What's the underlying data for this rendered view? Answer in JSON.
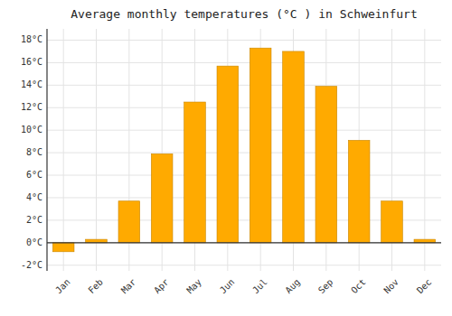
{
  "chart_data": {
    "type": "bar",
    "title": "Average monthly temperatures (°C ) in Schweinfurt",
    "categories": [
      "Jan",
      "Feb",
      "Mar",
      "Apr",
      "May",
      "Jun",
      "Jul",
      "Aug",
      "Sep",
      "Oct",
      "Nov",
      "Dec"
    ],
    "values": [
      -0.8,
      0.3,
      3.7,
      7.9,
      12.5,
      15.7,
      17.3,
      17.0,
      13.9,
      9.1,
      3.7,
      0.3
    ],
    "color": "#FFAA00",
    "ylim": [
      -2.5,
      19
    ],
    "yticks": [
      {
        "value": -2,
        "label": "-2°C"
      },
      {
        "value": 0,
        "label": "0°C"
      },
      {
        "value": 2,
        "label": "2°C"
      },
      {
        "value": 4,
        "label": "4°C"
      },
      {
        "value": 6,
        "label": "6°C"
      },
      {
        "value": 8,
        "label": "8°C"
      },
      {
        "value": 10,
        "label": "10°C"
      },
      {
        "value": 12,
        "label": "12°C"
      },
      {
        "value": 14,
        "label": "14°C"
      },
      {
        "value": 16,
        "label": "16°C"
      },
      {
        "value": 18,
        "label": "18°C"
      }
    ],
    "grid": true
  }
}
